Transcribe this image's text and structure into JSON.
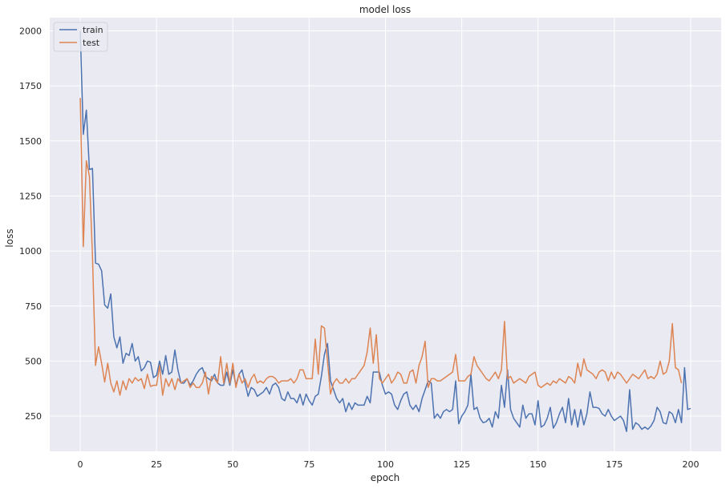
{
  "chart_data": {
    "type": "line",
    "title": "model loss",
    "xlabel": "epoch",
    "ylabel": "loss",
    "xlim": [
      -10,
      210
    ],
    "ylim": [
      90,
      2060
    ],
    "xticks": [
      0,
      25,
      50,
      75,
      100,
      125,
      150,
      175,
      200
    ],
    "yticks": [
      250,
      500,
      750,
      1000,
      1250,
      1500,
      1750,
      2000
    ],
    "grid": true,
    "legend_position": "top-left",
    "series": [
      {
        "name": "train",
        "color": "#4c72b0",
        "values": [
          2000,
          1530,
          1640,
          1370,
          1375,
          945,
          940,
          910,
          755,
          740,
          805,
          610,
          560,
          610,
          490,
          535,
          525,
          580,
          500,
          520,
          455,
          470,
          500,
          495,
          425,
          435,
          500,
          440,
          525,
          440,
          450,
          550,
          460,
          400,
          400,
          420,
          390,
          410,
          440,
          460,
          470,
          430,
          420,
          410,
          440,
          400,
          390,
          390,
          450,
          390,
          460,
          390,
          440,
          460,
          400,
          340,
          380,
          370,
          340,
          350,
          360,
          380,
          350,
          390,
          400,
          380,
          330,
          320,
          360,
          330,
          330,
          310,
          350,
          300,
          350,
          320,
          300,
          340,
          350,
          430,
          530,
          580,
          410,
          370,
          330,
          310,
          330,
          270,
          310,
          280,
          310,
          300,
          300,
          300,
          340,
          310,
          450,
          450,
          450,
          390,
          350,
          360,
          350,
          300,
          280,
          320,
          350,
          360,
          300,
          280,
          300,
          270,
          330,
          370,
          410,
          400,
          240,
          260,
          240,
          270,
          280,
          270,
          280,
          410,
          215,
          250,
          270,
          300,
          440,
          280,
          290,
          240,
          220,
          225,
          240,
          200,
          270,
          240,
          390,
          290,
          460,
          280,
          240,
          220,
          200,
          300,
          240,
          260,
          260,
          210,
          320,
          200,
          210,
          240,
          290,
          195,
          220,
          260,
          290,
          220,
          330,
          210,
          280,
          200,
          280,
          210,
          260,
          360,
          290,
          290,
          285,
          260,
          250,
          280,
          250,
          230,
          240,
          250,
          230,
          180,
          370,
          190,
          220,
          210,
          190,
          200,
          190,
          205,
          230,
          290,
          270,
          220,
          215,
          270,
          260,
          220,
          280,
          220,
          470,
          280,
          285
        ]
      },
      {
        "name": "test",
        "color": "#dd8452",
        "values": [
          1695,
          1020,
          1410,
          1340,
          980,
          480,
          565,
          490,
          405,
          490,
          400,
          360,
          410,
          345,
          410,
          370,
          420,
          400,
          425,
          410,
          420,
          375,
          440,
          385,
          390,
          390,
          480,
          345,
          420,
          385,
          420,
          370,
          420,
          400,
          410,
          420,
          380,
          400,
          380,
          380,
          400,
          450,
          350,
          430,
          420,
          400,
          520,
          400,
          490,
          400,
          490,
          380,
          440,
          400,
          420,
          380,
          420,
          440,
          400,
          410,
          400,
          420,
          430,
          430,
          420,
          400,
          410,
          410,
          410,
          420,
          400,
          420,
          460,
          460,
          420,
          420,
          420,
          600,
          440,
          660,
          650,
          500,
          350,
          400,
          420,
          400,
          400,
          420,
          400,
          420,
          420,
          440,
          460,
          480,
          540,
          650,
          490,
          620,
          420,
          400,
          420,
          440,
          400,
          420,
          450,
          440,
          400,
          400,
          450,
          460,
          400,
          480,
          520,
          590,
          380,
          420,
          420,
          410,
          410,
          420,
          430,
          440,
          450,
          530,
          410,
          410,
          410,
          430,
          440,
          520,
          480,
          460,
          440,
          420,
          410,
          430,
          450,
          420,
          460,
          680,
          420,
          430,
          400,
          410,
          420,
          410,
          400,
          430,
          440,
          450,
          390,
          380,
          390,
          400,
          390,
          410,
          400,
          420,
          410,
          400,
          430,
          420,
          400,
          490,
          430,
          510,
          460,
          450,
          440,
          420,
          450,
          460,
          450,
          410,
          450,
          420,
          450,
          440,
          420,
          400,
          420,
          440,
          430,
          420,
          440,
          460,
          420,
          430,
          420,
          440,
          500,
          440,
          450,
          500,
          670,
          470,
          460,
          400
        ]
      }
    ]
  }
}
